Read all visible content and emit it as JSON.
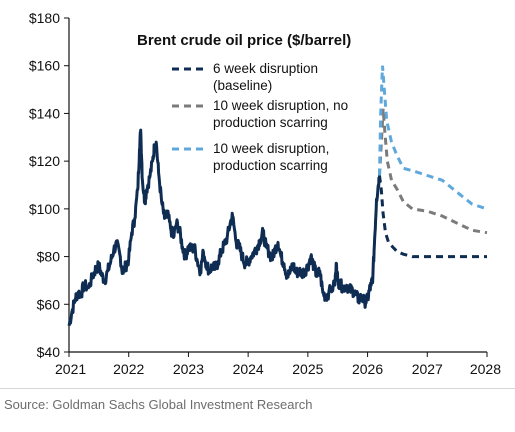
{
  "chart_data": {
    "type": "line",
    "title": "Brent crude oil price ($/barrel)",
    "xlabel": "",
    "ylabel": "",
    "xlim": [
      2021,
      2028
    ],
    "ylim": [
      40,
      180
    ],
    "x_ticks": [
      "2021",
      "2022",
      "2023",
      "2024",
      "2025",
      "2026",
      "2027",
      "2028"
    ],
    "y_ticks": [
      "$40",
      "$60",
      "$80",
      "$100",
      "$120",
      "$140",
      "$160",
      "$180"
    ],
    "grid": false,
    "legend_position": "top-right",
    "source": "Source: Goldman Sachs Global Investment Research",
    "historical": {
      "color": "#0f2d52",
      "points": [
        [
          2021.0,
          51
        ],
        [
          2021.05,
          57
        ],
        [
          2021.1,
          62
        ],
        [
          2021.15,
          65
        ],
        [
          2021.2,
          64
        ],
        [
          2021.25,
          68
        ],
        [
          2021.33,
          67
        ],
        [
          2021.4,
          72
        ],
        [
          2021.45,
          75
        ],
        [
          2021.5,
          76
        ],
        [
          2021.55,
          72
        ],
        [
          2021.6,
          70
        ],
        [
          2021.65,
          74
        ],
        [
          2021.7,
          78
        ],
        [
          2021.75,
          83
        ],
        [
          2021.8,
          85
        ],
        [
          2021.85,
          81
        ],
        [
          2021.9,
          73
        ],
        [
          2021.95,
          76
        ],
        [
          2022.0,
          79
        ],
        [
          2022.05,
          90
        ],
        [
          2022.1,
          96
        ],
        [
          2022.15,
          108
        ],
        [
          2022.18,
          125
        ],
        [
          2022.2,
          133
        ],
        [
          2022.23,
          112
        ],
        [
          2022.27,
          103
        ],
        [
          2022.3,
          108
        ],
        [
          2022.35,
          113
        ],
        [
          2022.4,
          120
        ],
        [
          2022.43,
          126
        ],
        [
          2022.46,
          128
        ],
        [
          2022.5,
          115
        ],
        [
          2022.55,
          103
        ],
        [
          2022.6,
          96
        ],
        [
          2022.65,
          98
        ],
        [
          2022.7,
          92
        ],
        [
          2022.75,
          88
        ],
        [
          2022.8,
          94
        ],
        [
          2022.85,
          91
        ],
        [
          2022.9,
          84
        ],
        [
          2022.95,
          80
        ],
        [
          2023.0,
          84
        ],
        [
          2023.05,
          83
        ],
        [
          2023.1,
          84
        ],
        [
          2023.15,
          78
        ],
        [
          2023.2,
          74
        ],
        [
          2023.25,
          82
        ],
        [
          2023.3,
          77
        ],
        [
          2023.35,
          74
        ],
        [
          2023.4,
          76
        ],
        [
          2023.45,
          75
        ],
        [
          2023.5,
          78
        ],
        [
          2023.55,
          82
        ],
        [
          2023.6,
          85
        ],
        [
          2023.65,
          88
        ],
        [
          2023.7,
          94
        ],
        [
          2023.74,
          97
        ],
        [
          2023.8,
          86
        ],
        [
          2023.85,
          84
        ],
        [
          2023.9,
          80
        ],
        [
          2023.95,
          77
        ],
        [
          2024.0,
          78
        ],
        [
          2024.05,
          80
        ],
        [
          2024.1,
          82
        ],
        [
          2024.15,
          84
        ],
        [
          2024.2,
          87
        ],
        [
          2024.25,
          90
        ],
        [
          2024.3,
          84
        ],
        [
          2024.35,
          82
        ],
        [
          2024.4,
          79
        ],
        [
          2024.45,
          83
        ],
        [
          2024.5,
          86
        ],
        [
          2024.55,
          80
        ],
        [
          2024.6,
          77
        ],
        [
          2024.65,
          72
        ],
        [
          2024.7,
          73
        ],
        [
          2024.75,
          77
        ],
        [
          2024.8,
          73
        ],
        [
          2024.85,
          74
        ],
        [
          2024.9,
          73
        ],
        [
          2024.95,
          74
        ],
        [
          2025.0,
          76
        ],
        [
          2025.05,
          80
        ],
        [
          2025.1,
          76
        ],
        [
          2025.15,
          72
        ],
        [
          2025.2,
          74
        ],
        [
          2025.25,
          65
        ],
        [
          2025.3,
          63
        ],
        [
          2025.35,
          65
        ],
        [
          2025.45,
          68
        ],
        [
          2025.48,
          77
        ],
        [
          2025.5,
          70
        ],
        [
          2025.55,
          68
        ],
        [
          2025.6,
          67
        ],
        [
          2025.65,
          68
        ],
        [
          2025.7,
          66
        ],
        [
          2025.75,
          66
        ],
        [
          2025.8,
          64
        ],
        [
          2025.85,
          62
        ],
        [
          2025.9,
          63
        ],
        [
          2025.95,
          61
        ],
        [
          2026.0,
          62
        ],
        [
          2026.03,
          66
        ],
        [
          2026.06,
          68
        ],
        [
          2026.09,
          72
        ],
        [
          2026.12,
          88
        ],
        [
          2026.15,
          104
        ],
        [
          2026.18,
          110
        ],
        [
          2026.2,
          114
        ]
      ]
    },
    "series": [
      {
        "name": "6 week disruption (baseline)",
        "color": "#0f2d52",
        "dash": "dashed",
        "points": [
          [
            2026.2,
            114
          ],
          [
            2026.23,
            108
          ],
          [
            2026.26,
            98
          ],
          [
            2026.3,
            90
          ],
          [
            2026.35,
            86
          ],
          [
            2026.42,
            84
          ],
          [
            2026.5,
            82
          ],
          [
            2026.6,
            81
          ],
          [
            2026.75,
            80
          ],
          [
            2027.0,
            80
          ],
          [
            2027.5,
            80
          ],
          [
            2028.0,
            80
          ]
        ]
      },
      {
        "name": "10 week disruption, no production scarring",
        "color": "#7b7b7b",
        "dash": "dashed",
        "points": [
          [
            2026.2,
            114
          ],
          [
            2026.24,
            132
          ],
          [
            2026.26,
            142
          ],
          [
            2026.29,
            132
          ],
          [
            2026.33,
            120
          ],
          [
            2026.4,
            112
          ],
          [
            2026.5,
            108
          ],
          [
            2026.6,
            103
          ],
          [
            2026.75,
            100
          ],
          [
            2027.0,
            99
          ],
          [
            2027.25,
            97
          ],
          [
            2027.5,
            94
          ],
          [
            2027.75,
            91
          ],
          [
            2028.0,
            90
          ]
        ]
      },
      {
        "name": "10 week disruption, production scarring",
        "color": "#5fa8dc",
        "dash": "dashed",
        "points": [
          [
            2026.2,
            114
          ],
          [
            2026.22,
            140
          ],
          [
            2026.25,
            160
          ],
          [
            2026.28,
            150
          ],
          [
            2026.32,
            137
          ],
          [
            2026.4,
            128
          ],
          [
            2026.5,
            122
          ],
          [
            2026.6,
            117
          ],
          [
            2026.75,
            116
          ],
          [
            2027.0,
            114
          ],
          [
            2027.25,
            112
          ],
          [
            2027.5,
            107
          ],
          [
            2027.75,
            102
          ],
          [
            2028.0,
            100
          ]
        ]
      }
    ]
  }
}
